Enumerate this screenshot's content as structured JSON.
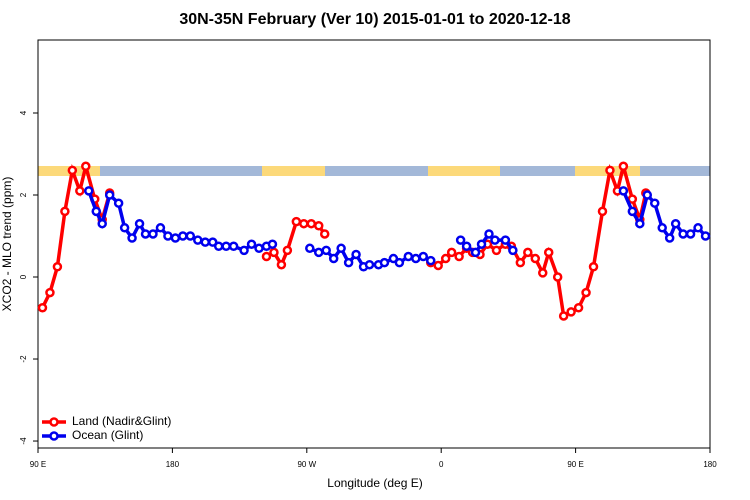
{
  "chart_data": {
    "type": "line",
    "title": "30N-35N February (Ver 10)   2015-01-01 to 2020-12-18",
    "xlabel": "Longitude (deg E)",
    "ylabel": "XCO2 - MLO trend (ppm)",
    "xlim": [
      90,
      540
    ],
    "xticks": [
      {
        "value": 90,
        "label": "90 E"
      },
      180,
      {
        "value": 270,
        "label": "90 W"
      },
      {
        "value": 360,
        "label": "0"
      },
      {
        "value": 450,
        "label": "90 E"
      },
      {
        "value": 540,
        "label": "180"
      }
    ],
    "ylim": [
      -4.17,
      5.78
    ],
    "yticks": [
      -4,
      -2,
      0,
      2,
      4
    ],
    "legend": "bottom-left",
    "series": [
      {
        "name": "Land (Nadir&Glint)",
        "color": "#ff0000",
        "x": [
          93,
          98,
          103,
          108,
          113,
          118,
          122,
          128,
          133,
          138,
          null,
          243,
          248,
          253,
          257,
          263,
          268,
          273,
          278,
          282,
          null,
          353,
          358,
          363,
          367,
          372,
          377,
          381,
          386,
          391,
          397,
          403,
          407,
          413,
          418,
          423,
          428,
          432,
          438,
          442,
          447,
          452,
          457,
          462,
          468,
          473,
          478,
          482,
          488,
          493,
          497
        ],
        "values": [
          -0.75,
          -0.38,
          0.25,
          1.6,
          2.6,
          2.1,
          2.7,
          1.9,
          1.4,
          2.05,
          null,
          0.5,
          0.6,
          0.3,
          0.65,
          1.35,
          1.3,
          1.3,
          1.25,
          1.05,
          null,
          0.35,
          0.28,
          0.45,
          0.6,
          0.5,
          0.7,
          0.6,
          0.55,
          0.8,
          0.65,
          0.8,
          0.75,
          0.35,
          0.6,
          0.45,
          0.1,
          0.6,
          0.0,
          -0.95,
          -0.85,
          -0.75,
          -0.38,
          0.25,
          1.6,
          2.6,
          2.1,
          2.7,
          1.9,
          1.4,
          2.05
        ]
      },
      {
        "name": "Ocean (Glint)",
        "color": "#0000ee",
        "x": [
          124,
          129,
          133,
          138,
          144,
          148,
          153,
          158,
          162,
          167,
          172,
          177,
          182,
          187,
          192,
          197,
          202,
          207,
          211,
          216,
          221,
          228,
          233,
          238,
          243,
          247,
          null,
          272,
          278,
          283,
          288,
          293,
          298,
          303,
          308,
          312,
          318,
          322,
          328,
          332,
          338,
          343,
          348,
          353,
          null,
          373,
          377,
          383,
          387,
          392,
          396,
          403,
          408,
          null,
          482,
          488,
          493,
          498,
          503,
          508,
          513,
          517,
          522,
          527,
          532,
          537
        ],
        "values": [
          2.1,
          1.6,
          1.3,
          2.0,
          1.8,
          1.2,
          0.95,
          1.3,
          1.05,
          1.05,
          1.2,
          1.0,
          0.95,
          1.0,
          1.0,
          0.9,
          0.85,
          0.85,
          0.75,
          0.75,
          0.75,
          0.65,
          0.8,
          0.7,
          0.75,
          0.8,
          null,
          0.7,
          0.6,
          0.65,
          0.45,
          0.7,
          0.35,
          0.55,
          0.25,
          0.3,
          0.3,
          0.35,
          0.45,
          0.35,
          0.5,
          0.45,
          0.5,
          0.4,
          null,
          0.9,
          0.75,
          0.6,
          0.8,
          1.05,
          0.9,
          0.9,
          0.65,
          null,
          2.1,
          1.6,
          1.3,
          2.0,
          1.8,
          1.2,
          0.95,
          1.3,
          1.05,
          1.05,
          1.2,
          1.0
        ]
      }
    ]
  }
}
